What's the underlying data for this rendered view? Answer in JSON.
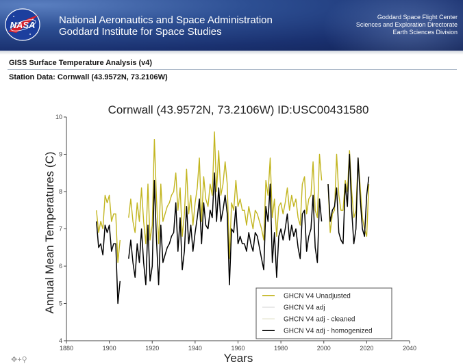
{
  "header": {
    "agency_line1": "National Aeronautics and Space Administration",
    "agency_line2": "Goddard Institute for Space Studies",
    "center_line1": "Goddard Space Flight Center",
    "center_line2": "Sciences and Exploration Directorate",
    "center_line3": "Earth Sciences Division",
    "logo_text": "NASA"
  },
  "page": {
    "title": "GISS Surface Temperature Analysis (v4)",
    "station_label": "Station Data: Cornwall (43.9572N, 73.2106W)"
  },
  "modebar": {
    "icons": "✥+⚲"
  },
  "chart_data": {
    "type": "line",
    "title": "Cornwall (43.9572N, 73.2106W) ID:USC00431580",
    "xlabel": "Years",
    "ylabel": "Annual Mean Temperatures (C)",
    "xlim": [
      1880,
      2040
    ],
    "ylim": [
      4,
      10
    ],
    "xticks": [
      1880,
      1900,
      1920,
      1940,
      1960,
      1980,
      2000,
      2020,
      2040
    ],
    "yticks": [
      4,
      5,
      6,
      7,
      8,
      9,
      10
    ],
    "legend_position": "bottom-right",
    "series": [
      {
        "name": "GHCN V4 Unadjusted",
        "color": "#c2b51f",
        "segments": [
          [
            [
              1894,
              7.5
            ],
            [
              1895,
              6.9
            ],
            [
              1896,
              7.2
            ],
            [
              1897,
              7.0
            ],
            [
              1898,
              7.9
            ],
            [
              1899,
              7.7
            ],
            [
              1900,
              7.9
            ],
            [
              1901,
              7.2
            ],
            [
              1902,
              7.4
            ],
            [
              1903,
              7.4
            ],
            [
              1904,
              6.1
            ],
            [
              1905,
              6.7
            ]
          ],
          [
            [
              1909,
              7.3
            ],
            [
              1910,
              7.8
            ],
            [
              1911,
              7.2
            ],
            [
              1912,
              6.9
            ],
            [
              1913,
              7.7
            ],
            [
              1914,
              7.2
            ],
            [
              1915,
              8.1
            ],
            [
              1916,
              7.2
            ],
            [
              1917,
              6.6
            ],
            [
              1918,
              8.2
            ],
            [
              1919,
              6.7
            ],
            [
              1920,
              7.1
            ],
            [
              1921,
              9.4
            ],
            [
              1922,
              7.8
            ],
            [
              1923,
              6.6
            ],
            [
              1924,
              8.2
            ],
            [
              1925,
              7.2
            ],
            [
              1926,
              7.4
            ],
            [
              1927,
              7.6
            ],
            [
              1928,
              7.7
            ],
            [
              1929,
              7.9
            ],
            [
              1930,
              8.0
            ],
            [
              1931,
              8.5
            ],
            [
              1932,
              7.5
            ],
            [
              1933,
              8.1
            ],
            [
              1934,
              6.8
            ],
            [
              1935,
              7.4
            ],
            [
              1936,
              8.6
            ],
            [
              1937,
              7.4
            ],
            [
              1938,
              7.9
            ],
            [
              1939,
              7.1
            ],
            [
              1940,
              7.7
            ],
            [
              1941,
              8.1
            ],
            [
              1942,
              8.9
            ],
            [
              1943,
              7.2
            ],
            [
              1944,
              8.4
            ],
            [
              1945,
              7.8
            ],
            [
              1946,
              7.6
            ],
            [
              1947,
              8.2
            ],
            [
              1948,
              7.9
            ],
            [
              1949,
              9.6
            ],
            [
              1950,
              8.0
            ],
            [
              1951,
              9.1
            ],
            [
              1952,
              7.9
            ],
            [
              1953,
              8.2
            ],
            [
              1954,
              8.8
            ],
            [
              1955,
              8.2
            ],
            [
              1956,
              6.2
            ],
            [
              1957,
              7.7
            ],
            [
              1958,
              7.5
            ],
            [
              1959,
              8.3
            ],
            [
              1960,
              7.6
            ],
            [
              1961,
              7.8
            ],
            [
              1962,
              7.5
            ],
            [
              1963,
              7.5
            ],
            [
              1964,
              7.1
            ],
            [
              1965,
              7.6
            ],
            [
              1966,
              7.3
            ],
            [
              1967,
              7.0
            ],
            [
              1968,
              7.5
            ],
            [
              1969,
              7.4
            ],
            [
              1970,
              7.2
            ],
            [
              1971,
              7.0
            ],
            [
              1972,
              6.7
            ],
            [
              1973,
              8.3
            ],
            [
              1974,
              7.9
            ],
            [
              1975,
              8.9
            ],
            [
              1976,
              7.3
            ],
            [
              1977,
              7.8
            ],
            [
              1978,
              6.8
            ],
            [
              1979,
              7.6
            ],
            [
              1980,
              7.7
            ],
            [
              1981,
              7.4
            ],
            [
              1982,
              7.7
            ],
            [
              1983,
              8.1
            ],
            [
              1984,
              7.5
            ],
            [
              1985,
              7.9
            ],
            [
              1986,
              7.6
            ],
            [
              1987,
              7.8
            ],
            [
              1988,
              7.3
            ],
            [
              1989,
              7.1
            ],
            [
              1990,
              8.2
            ],
            [
              1991,
              8.4
            ],
            [
              1992,
              7.4
            ],
            [
              1993,
              7.8
            ],
            [
              1994,
              7.9
            ],
            [
              1995,
              8.8
            ],
            [
              1996,
              7.5
            ],
            [
              1997,
              7.3
            ],
            [
              1998,
              9.0
            ],
            [
              1999,
              8.3
            ]
          ],
          [
            [
              2002,
              8.2
            ],
            [
              2003,
              6.9
            ],
            [
              2004,
              7.4
            ],
            [
              2005,
              7.5
            ],
            [
              2006,
              9.0
            ],
            [
              2007,
              7.9
            ],
            [
              2008,
              7.5
            ],
            [
              2009,
              7.5
            ],
            [
              2010,
              8.3
            ],
            [
              2011,
              8.0
            ],
            [
              2012,
              9.1
            ],
            [
              2013,
              8.0
            ],
            [
              2014,
              7.3
            ],
            [
              2015,
              7.5
            ],
            [
              2016,
              8.9
            ],
            [
              2017,
              8.1
            ],
            [
              2018,
              7.3
            ],
            [
              2019,
              7.0
            ],
            [
              2020,
              6.8
            ],
            [
              2021,
              8.2
            ]
          ]
        ]
      },
      {
        "name": "GHCN V4 adj",
        "color": "#e6e6e6",
        "segments": []
      },
      {
        "name": "GHCN V4 adj - cleaned",
        "color": "#eeeee0",
        "segments": []
      },
      {
        "name": "GHCN V4 adj - homogenized",
        "color": "#000000",
        "segments": [
          [
            [
              1894,
              7.2
            ],
            [
              1895,
              6.5
            ],
            [
              1896,
              6.6
            ],
            [
              1897,
              6.3
            ],
            [
              1898,
              7.1
            ],
            [
              1899,
              6.9
            ],
            [
              1900,
              7.1
            ],
            [
              1901,
              6.4
            ],
            [
              1902,
              6.6
            ],
            [
              1903,
              6.6
            ],
            [
              1904,
              5.0
            ],
            [
              1905,
              5.6
            ]
          ],
          [
            [
              1909,
              6.2
            ],
            [
              1910,
              6.7
            ],
            [
              1911,
              6.1
            ],
            [
              1912,
              5.7
            ],
            [
              1913,
              6.6
            ],
            [
              1914,
              6.1
            ],
            [
              1915,
              7.0
            ],
            [
              1916,
              6.1
            ],
            [
              1917,
              5.5
            ],
            [
              1918,
              7.1
            ],
            [
              1919,
              5.6
            ],
            [
              1920,
              6.0
            ],
            [
              1921,
              8.3
            ],
            [
              1922,
              6.7
            ],
            [
              1923,
              5.5
            ],
            [
              1924,
              7.1
            ],
            [
              1925,
              6.1
            ],
            [
              1926,
              6.3
            ],
            [
              1927,
              6.5
            ],
            [
              1928,
              6.6
            ],
            [
              1929,
              6.8
            ],
            [
              1930,
              6.9
            ],
            [
              1931,
              7.7
            ],
            [
              1932,
              6.4
            ],
            [
              1933,
              7.3
            ],
            [
              1934,
              5.9
            ],
            [
              1935,
              6.4
            ],
            [
              1936,
              7.6
            ],
            [
              1937,
              6.6
            ],
            [
              1938,
              7.1
            ],
            [
              1939,
              6.4
            ],
            [
              1940,
              6.9
            ],
            [
              1941,
              7.3
            ],
            [
              1942,
              7.8
            ],
            [
              1943,
              6.6
            ],
            [
              1944,
              7.7
            ],
            [
              1945,
              7.1
            ],
            [
              1946,
              7.0
            ],
            [
              1947,
              7.5
            ],
            [
              1948,
              7.3
            ],
            [
              1949,
              8.5
            ],
            [
              1950,
              7.2
            ],
            [
              1951,
              8.1
            ],
            [
              1952,
              7.2
            ],
            [
              1953,
              7.5
            ],
            [
              1954,
              7.9
            ],
            [
              1955,
              7.4
            ],
            [
              1956,
              5.5
            ],
            [
              1957,
              7.0
            ],
            [
              1958,
              6.9
            ],
            [
              1959,
              7.6
            ],
            [
              1960,
              6.6
            ],
            [
              1961,
              6.8
            ],
            [
              1962,
              6.6
            ],
            [
              1963,
              6.6
            ],
            [
              1964,
              6.4
            ],
            [
              1965,
              6.9
            ],
            [
              1966,
              6.6
            ],
            [
              1967,
              6.4
            ],
            [
              1968,
              6.9
            ],
            [
              1969,
              6.8
            ],
            [
              1970,
              6.5
            ],
            [
              1971,
              6.2
            ],
            [
              1972,
              5.9
            ],
            [
              1973,
              7.6
            ],
            [
              1974,
              7.2
            ],
            [
              1975,
              8.2
            ],
            [
              1976,
              6.1
            ],
            [
              1977,
              6.9
            ],
            [
              1978,
              5.7
            ],
            [
              1979,
              6.8
            ],
            [
              1980,
              7.0
            ],
            [
              1981,
              6.7
            ],
            [
              1982,
              7.0
            ],
            [
              1983,
              7.4
            ],
            [
              1984,
              6.7
            ],
            [
              1985,
              7.1
            ],
            [
              1986,
              6.8
            ],
            [
              1987,
              7.0
            ],
            [
              1988,
              6.5
            ],
            [
              1989,
              6.2
            ],
            [
              1990,
              7.4
            ],
            [
              1991,
              7.5
            ],
            [
              1992,
              6.4
            ],
            [
              1993,
              6.8
            ],
            [
              1994,
              7.0
            ],
            [
              1995,
              7.9
            ],
            [
              1996,
              6.5
            ],
            [
              1997,
              6.1
            ],
            [
              1998,
              7.8
            ],
            [
              1999,
              7.2
            ]
          ],
          [
            [
              2002,
              8.2
            ],
            [
              2003,
              7.2
            ],
            [
              2004,
              7.5
            ],
            [
              2005,
              7.6
            ],
            [
              2006,
              8.1
            ],
            [
              2007,
              6.9
            ],
            [
              2008,
              6.7
            ],
            [
              2009,
              6.6
            ],
            [
              2010,
              8.2
            ],
            [
              2011,
              7.6
            ],
            [
              2012,
              9.0
            ],
            [
              2013,
              7.5
            ],
            [
              2014,
              6.6
            ],
            [
              2015,
              7.0
            ],
            [
              2016,
              8.9
            ],
            [
              2017,
              7.8
            ],
            [
              2018,
              7.0
            ],
            [
              2019,
              6.8
            ],
            [
              2020,
              7.9
            ],
            [
              2021,
              8.4
            ]
          ]
        ]
      }
    ]
  }
}
